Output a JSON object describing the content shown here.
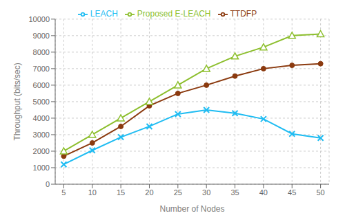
{
  "chart_data": {
    "type": "line",
    "xlabel": "Number of Nodes",
    "ylabel": "Throughput (bits/sec)",
    "x": [
      5,
      10,
      15,
      20,
      25,
      30,
      35,
      40,
      45,
      50
    ],
    "series": [
      {
        "name": "LEACH",
        "color": "#1FBCF2",
        "marker": "x",
        "values": [
          1200,
          2050,
          2850,
          3500,
          4250,
          4500,
          4300,
          3950,
          3050,
          2800
        ]
      },
      {
        "name": "TTDFP",
        "color": "#8B3A0F",
        "marker": "o",
        "values": [
          1700,
          2500,
          3500,
          4750,
          5500,
          6000,
          6550,
          7000,
          7200,
          7300
        ]
      },
      {
        "name": "Proposed E-LEACH",
        "color": "#8DBF2E",
        "marker": "^",
        "values": [
          2000,
          3000,
          4000,
          5000,
          6000,
          7000,
          7750,
          8300,
          9000,
          9100
        ]
      }
    ],
    "xlim": [
      3.5,
      51.5
    ],
    "xticks": [
      5,
      10,
      15,
      20,
      25,
      30,
      35,
      40,
      45,
      50
    ],
    "ylim": [
      0,
      10000
    ],
    "yticks": [
      0,
      1000,
      2000,
      3000,
      4000,
      5000,
      6000,
      7000,
      8000,
      9000,
      10000
    ],
    "grid": true,
    "legend": "top"
  }
}
